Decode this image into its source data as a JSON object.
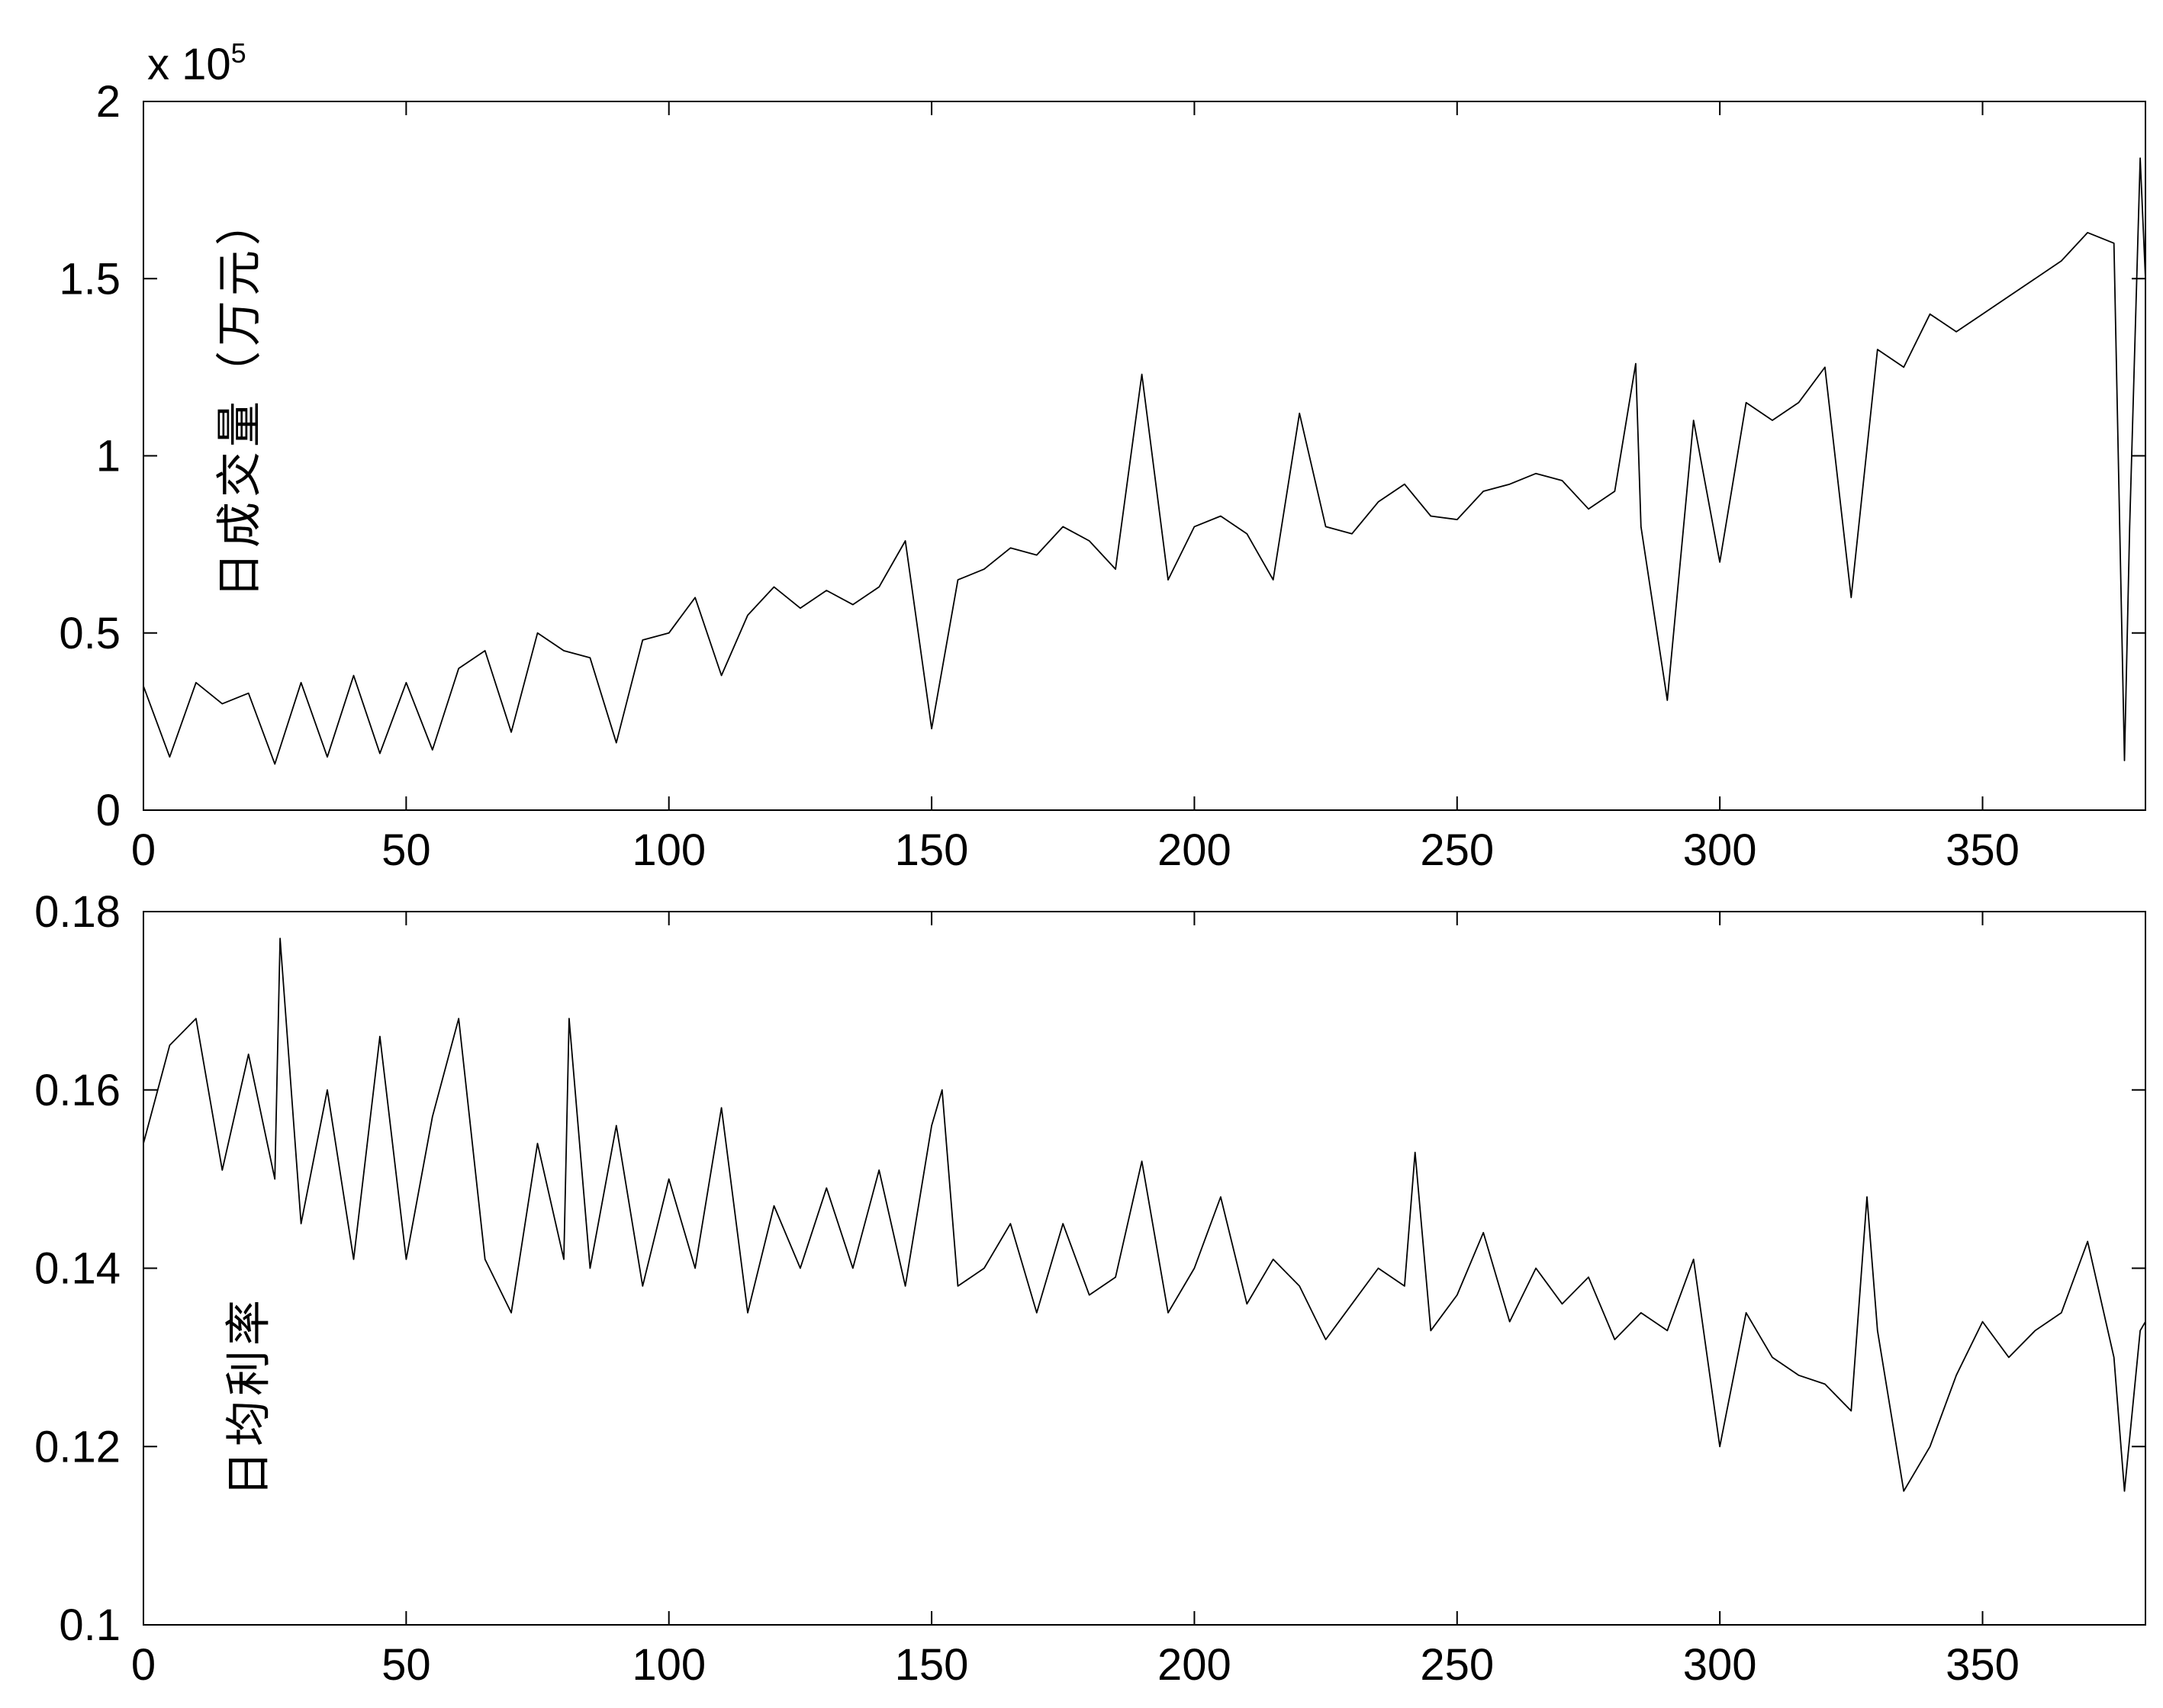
{
  "chart_data": [
    {
      "type": "line",
      "ylabel": "日成交量（万元）",
      "exponent": {
        "base_text": "x 10",
        "power": "5"
      },
      "xlim": [
        0,
        381
      ],
      "ylim": [
        0,
        200000
      ],
      "xticks": [
        0,
        50,
        100,
        150,
        200,
        250,
        300,
        350
      ],
      "yticks": [
        0,
        50000,
        100000,
        150000,
        200000
      ],
      "ytick_labels": [
        "0",
        "0.5",
        "1",
        "1.5",
        "2"
      ],
      "grid": false,
      "series": [
        {
          "color": "#000000",
          "x": [
            0,
            5,
            10,
            15,
            20,
            25,
            30,
            35,
            40,
            45,
            50,
            55,
            60,
            65,
            70,
            75,
            80,
            85,
            90,
            95,
            100,
            105,
            110,
            115,
            120,
            125,
            130,
            135,
            140,
            145,
            150,
            155,
            160,
            165,
            170,
            175,
            180,
            185,
            190,
            195,
            200,
            205,
            210,
            215,
            220,
            225,
            230,
            235,
            240,
            245,
            250,
            255,
            260,
            265,
            270,
            275,
            280,
            284,
            285,
            290,
            295,
            300,
            305,
            310,
            315,
            320,
            325,
            330,
            335,
            340,
            345,
            350,
            355,
            360,
            365,
            370,
            375,
            377,
            378,
            380,
            381
          ],
          "values": [
            35000,
            15000,
            36000,
            30000,
            33000,
            13000,
            36000,
            15000,
            38000,
            16000,
            36000,
            17000,
            40000,
            45000,
            22000,
            50000,
            45000,
            43000,
            19000,
            48000,
            50000,
            60000,
            38000,
            55000,
            63000,
            57000,
            62000,
            58000,
            63000,
            76000,
            23000,
            65000,
            68000,
            74000,
            72000,
            80000,
            76000,
            68000,
            123000,
            65000,
            80000,
            83000,
            78000,
            65000,
            112000,
            80000,
            78000,
            87000,
            92000,
            83000,
            82000,
            90000,
            92000,
            95000,
            93000,
            85000,
            90000,
            126000,
            80000,
            31000,
            110000,
            70000,
            115000,
            110000,
            115000,
            125000,
            60000,
            130000,
            125000,
            140000,
            135000,
            140000,
            145000,
            150000,
            155000,
            163000,
            160000,
            14000,
            80000,
            184000,
            150000
          ]
        }
      ]
    },
    {
      "type": "line",
      "ylabel": "日均利率",
      "xlim": [
        0,
        381
      ],
      "ylim": [
        0.1,
        0.18
      ],
      "xticks": [
        0,
        50,
        100,
        150,
        200,
        250,
        300,
        350
      ],
      "yticks": [
        0.1,
        0.12,
        0.14,
        0.16,
        0.18
      ],
      "ytick_labels": [
        "0.1",
        "0.12",
        "0.14",
        "0.16",
        "0.18"
      ],
      "grid": false,
      "series": [
        {
          "color": "#000000",
          "x": [
            0,
            5,
            10,
            15,
            20,
            25,
            26,
            30,
            35,
            40,
            45,
            50,
            55,
            60,
            65,
            70,
            75,
            80,
            81,
            85,
            90,
            95,
            100,
            105,
            110,
            115,
            120,
            125,
            130,
            135,
            140,
            145,
            150,
            152,
            155,
            160,
            165,
            170,
            175,
            180,
            185,
            190,
            195,
            200,
            205,
            210,
            215,
            220,
            225,
            230,
            235,
            240,
            242,
            245,
            250,
            255,
            260,
            265,
            270,
            275,
            280,
            285,
            290,
            295,
            300,
            305,
            310,
            315,
            320,
            325,
            328,
            330,
            335,
            340,
            345,
            350,
            355,
            360,
            365,
            370,
            375,
            377,
            380,
            381
          ],
          "values": [
            0.154,
            0.165,
            0.168,
            0.151,
            0.164,
            0.15,
            0.177,
            0.145,
            0.16,
            0.141,
            0.166,
            0.141,
            0.157,
            0.168,
            0.141,
            0.135,
            0.154,
            0.141,
            0.168,
            0.14,
            0.156,
            0.138,
            0.15,
            0.14,
            0.158,
            0.135,
            0.147,
            0.14,
            0.149,
            0.14,
            0.151,
            0.138,
            0.156,
            0.16,
            0.138,
            0.14,
            0.145,
            0.135,
            0.145,
            0.137,
            0.139,
            0.152,
            0.135,
            0.14,
            0.148,
            0.136,
            0.141,
            0.138,
            0.132,
            0.136,
            0.14,
            0.138,
            0.153,
            0.133,
            0.137,
            0.144,
            0.134,
            0.14,
            0.136,
            0.139,
            0.132,
            0.135,
            0.133,
            0.141,
            0.12,
            0.135,
            0.13,
            0.128,
            0.127,
            0.124,
            0.148,
            0.133,
            0.115,
            0.12,
            0.128,
            0.134,
            0.13,
            0.133,
            0.135,
            0.143,
            0.13,
            0.115,
            0.133,
            0.134
          ]
        }
      ]
    }
  ]
}
